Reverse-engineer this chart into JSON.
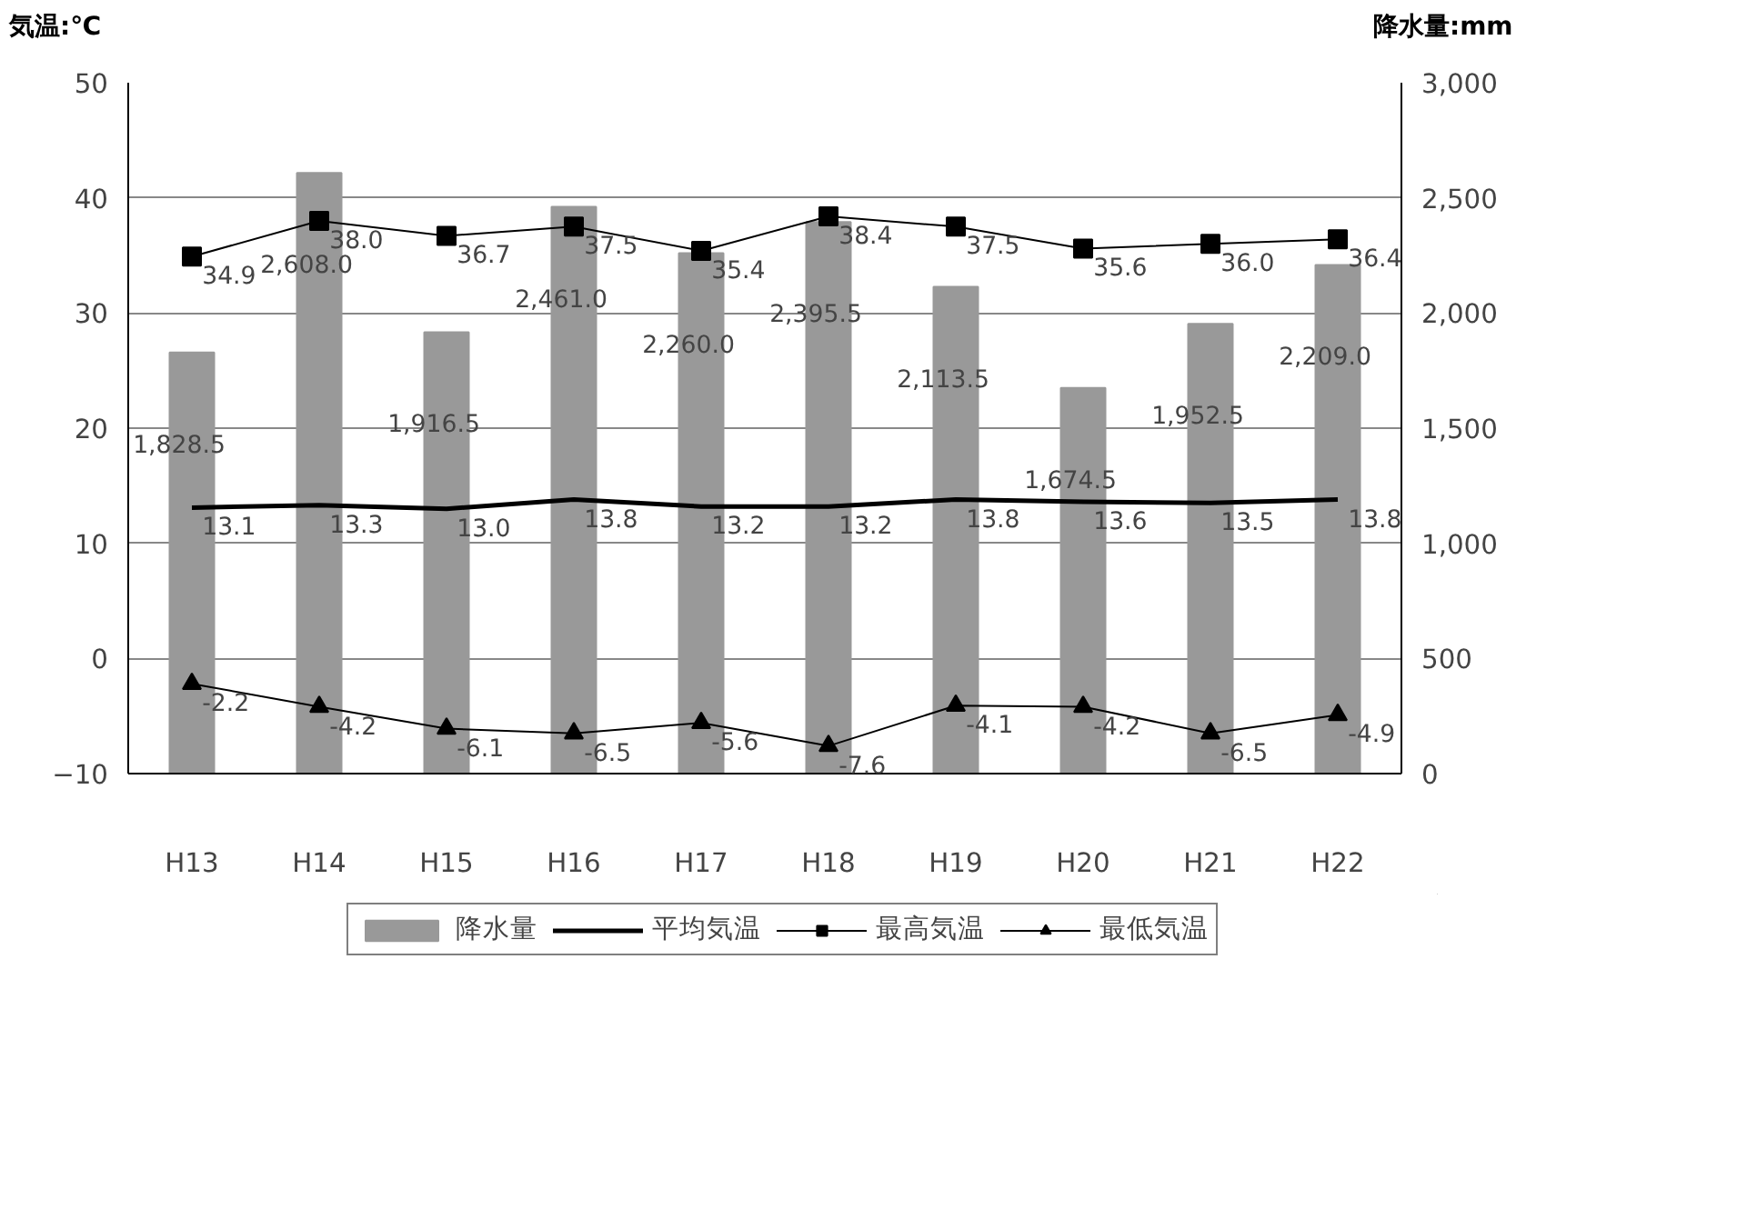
{
  "chart_data": {
    "type": "bar",
    "ylabel": "気温:℃",
    "y2label": "降水量:mm",
    "categories": [
      "H13",
      "H14",
      "H15",
      "H16",
      "H17",
      "H18",
      "H19",
      "H20",
      "H21",
      "H22"
    ],
    "series": [
      {
        "name": "降水量",
        "axis": "y2",
        "color": "#999999",
        "values": [
          1828.5,
          2608.0,
          1916.5,
          2461.0,
          2260.0,
          2395.5,
          2113.5,
          1674.5,
          1952.5,
          2209.0
        ],
        "value_labels": [
          "1,828.5",
          "2,608.0",
          "1,916.5",
          "2,461.0",
          "2,260.0",
          "2,395.5",
          "2,113.5",
          "1,674.5",
          "1,952.5",
          "2,209.0"
        ]
      },
      {
        "name": "平均気温",
        "type": "line",
        "color": "#000000",
        "marker": "none",
        "values": [
          13.1,
          13.3,
          13.0,
          13.8,
          13.2,
          13.2,
          13.8,
          13.6,
          13.5,
          13.8
        ],
        "value_labels": [
          "13.1",
          "13.3",
          "13.0",
          "13.8",
          "13.2",
          "13.2",
          "13.8",
          "13.6",
          "13.5",
          "13.8"
        ]
      },
      {
        "name": "最高気温",
        "type": "line",
        "color": "#000000",
        "marker": "square",
        "values": [
          34.9,
          38.0,
          36.7,
          37.5,
          35.4,
          38.4,
          37.5,
          35.6,
          36.0,
          36.4
        ],
        "value_labels": [
          "34.9",
          "38.0",
          "36.7",
          "37.5",
          "35.4",
          "38.4",
          "37.5",
          "35.6",
          "36.0",
          "36.4"
        ]
      },
      {
        "name": "最低気温",
        "type": "line",
        "color": "#000000",
        "marker": "triangle",
        "values": [
          -2.2,
          -4.2,
          -6.1,
          -6.5,
          -5.6,
          -7.6,
          -4.1,
          -4.2,
          -6.5,
          -4.9
        ],
        "value_labels": [
          "-2.2",
          "-4.2",
          "-6.1",
          "-6.5",
          "-5.6",
          "-7.6",
          "-4.1",
          "-4.2",
          "-6.5",
          "-4.9"
        ]
      }
    ],
    "ylim": [
      -10,
      50
    ],
    "yticks": [
      -10,
      0,
      10,
      20,
      30,
      40,
      50
    ],
    "y2lim": [
      0,
      3000
    ],
    "y2ticks": [
      0,
      500,
      {
        "value": 1000,
        "label": "1,000"
      },
      {
        "value": 1500,
        "label": "1,500"
      },
      {
        "value": 2000,
        "label": "2,000"
      },
      {
        "value": 2500,
        "label": "2,500"
      },
      {
        "value": 3000,
        "label": "3,000"
      }
    ],
    "grid": "y",
    "legend": "bottom"
  }
}
